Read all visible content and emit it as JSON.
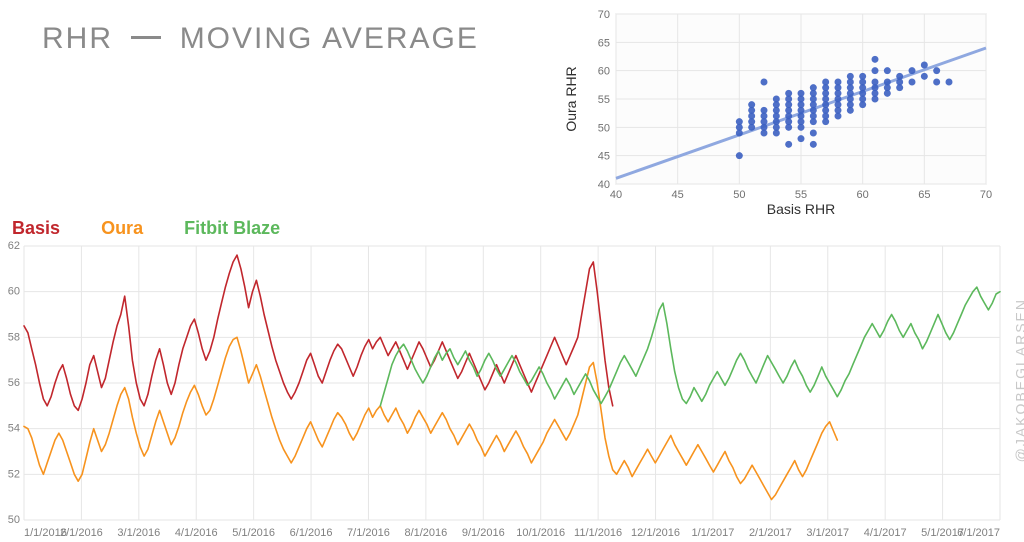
{
  "title_part1": "RHR",
  "title_part2": "MOVING AVERAGE",
  "watermark": "@JAKOBEGLARSEN",
  "legend": {
    "items": [
      {
        "label": "Basis",
        "color": "#c1272d"
      },
      {
        "label": "Oura",
        "color": "#f7931e"
      },
      {
        "label": "Fitbit Blaze",
        "color": "#5cb85c"
      }
    ]
  },
  "scatter": {
    "type": "scatter",
    "x_label": "Basis RHR",
    "y_label": "Oura RHR",
    "xlim": [
      40,
      70
    ],
    "ylim": [
      40,
      70
    ],
    "xtick_step": 5,
    "ytick_step": 5,
    "point_color": "#3b5fc1",
    "point_radius": 3.5,
    "fit_line_color": "#8fa8e0",
    "fit_line_width": 3,
    "fit_line": {
      "x1": 40,
      "y1": 41,
      "x2": 70,
      "y2": 64
    },
    "background_color": "#fcfcfc",
    "grid_color": "#e6e6e6",
    "points": [
      [
        50,
        45
      ],
      [
        50,
        49
      ],
      [
        50,
        50
      ],
      [
        50,
        51
      ],
      [
        51,
        50
      ],
      [
        51,
        51
      ],
      [
        51,
        52
      ],
      [
        51,
        53
      ],
      [
        51,
        54
      ],
      [
        52,
        49
      ],
      [
        52,
        50
      ],
      [
        52,
        51
      ],
      [
        52,
        52
      ],
      [
        52,
        53
      ],
      [
        52,
        58
      ],
      [
        53,
        49
      ],
      [
        53,
        50
      ],
      [
        53,
        51
      ],
      [
        53,
        52
      ],
      [
        53,
        53
      ],
      [
        53,
        54
      ],
      [
        53,
        55
      ],
      [
        54,
        50
      ],
      [
        54,
        51
      ],
      [
        54,
        52
      ],
      [
        54,
        53
      ],
      [
        54,
        54
      ],
      [
        54,
        55
      ],
      [
        54,
        56
      ],
      [
        54,
        47
      ],
      [
        55,
        50
      ],
      [
        55,
        51
      ],
      [
        55,
        52
      ],
      [
        55,
        53
      ],
      [
        55,
        54
      ],
      [
        55,
        55
      ],
      [
        55,
        56
      ],
      [
        55,
        48
      ],
      [
        56,
        51
      ],
      [
        56,
        52
      ],
      [
        56,
        53
      ],
      [
        56,
        54
      ],
      [
        56,
        55
      ],
      [
        56,
        56
      ],
      [
        56,
        57
      ],
      [
        56,
        49
      ],
      [
        56,
        47
      ],
      [
        57,
        51
      ],
      [
        57,
        52
      ],
      [
        57,
        53
      ],
      [
        57,
        54
      ],
      [
        57,
        55
      ],
      [
        57,
        56
      ],
      [
        57,
        57
      ],
      [
        57,
        58
      ],
      [
        58,
        52
      ],
      [
        58,
        53
      ],
      [
        58,
        54
      ],
      [
        58,
        55
      ],
      [
        58,
        56
      ],
      [
        58,
        57
      ],
      [
        58,
        58
      ],
      [
        59,
        53
      ],
      [
        59,
        54
      ],
      [
        59,
        55
      ],
      [
        59,
        56
      ],
      [
        59,
        57
      ],
      [
        59,
        58
      ],
      [
        59,
        59
      ],
      [
        60,
        54
      ],
      [
        60,
        55
      ],
      [
        60,
        56
      ],
      [
        60,
        57
      ],
      [
        60,
        58
      ],
      [
        60,
        59
      ],
      [
        61,
        55
      ],
      [
        61,
        56
      ],
      [
        61,
        57
      ],
      [
        61,
        58
      ],
      [
        61,
        60
      ],
      [
        61,
        62
      ],
      [
        62,
        56
      ],
      [
        62,
        57
      ],
      [
        62,
        58
      ],
      [
        62,
        60
      ],
      [
        63,
        57
      ],
      [
        63,
        58
      ],
      [
        63,
        59
      ],
      [
        64,
        58
      ],
      [
        64,
        60
      ],
      [
        65,
        59
      ],
      [
        65,
        61
      ],
      [
        66,
        58
      ],
      [
        66,
        60
      ],
      [
        67,
        58
      ]
    ]
  },
  "main_chart": {
    "type": "line",
    "ylim": [
      50,
      62
    ],
    "ytick_step": 2,
    "x_labels": [
      "1/1/2016",
      "2/1/2016",
      "3/1/2016",
      "4/1/2016",
      "5/1/2016",
      "6/1/2016",
      "7/1/2016",
      "8/1/2016",
      "9/1/2016",
      "10/1/2016",
      "11/1/2016",
      "12/1/2016",
      "1/1/2017",
      "2/1/2017",
      "3/1/2017",
      "4/1/2017",
      "5/1/2017",
      "6/1/2017"
    ],
    "grid_color": "#e6e6e6",
    "line_width": 1.6,
    "series": {
      "basis": {
        "color": "#c1272d",
        "start": 0,
        "data": [
          58.5,
          58.2,
          57.5,
          56.8,
          56.0,
          55.3,
          55.0,
          55.4,
          56.0,
          56.5,
          56.8,
          56.2,
          55.5,
          55.0,
          54.8,
          55.3,
          56.0,
          56.8,
          57.2,
          56.5,
          55.8,
          56.2,
          57.0,
          57.8,
          58.5,
          59.0,
          59.8,
          58.5,
          57.0,
          56.0,
          55.3,
          55.0,
          55.5,
          56.3,
          57.0,
          57.5,
          56.8,
          56.0,
          55.5,
          56.0,
          56.8,
          57.5,
          58.0,
          58.5,
          58.8,
          58.2,
          57.5,
          57.0,
          57.4,
          58.0,
          58.8,
          59.5,
          60.2,
          60.8,
          61.3,
          61.6,
          61.0,
          60.2,
          59.3,
          60.0,
          60.5,
          59.8,
          59.0,
          58.3,
          57.6,
          57.0,
          56.5,
          56.0,
          55.6,
          55.3,
          55.6,
          56.0,
          56.5,
          57.0,
          57.3,
          56.8,
          56.3,
          56.0,
          56.5,
          57.0,
          57.4,
          57.7,
          57.5,
          57.1,
          56.7,
          56.3,
          56.7,
          57.2,
          57.6,
          57.9,
          57.5,
          57.8,
          58.0,
          57.6,
          57.2,
          57.5,
          57.8,
          57.4,
          57.0,
          56.6,
          57.0,
          57.4,
          57.8,
          57.5,
          57.1,
          56.7,
          57.0,
          57.4,
          57.8,
          57.4,
          57.0,
          56.6,
          56.2,
          56.5,
          56.9,
          57.3,
          56.9,
          56.5,
          56.1,
          55.7,
          56.0,
          56.4,
          56.8,
          56.4,
          56.0,
          56.4,
          56.8,
          57.2,
          56.8,
          56.4,
          56.0,
          55.6,
          56.0,
          56.4,
          56.8,
          57.2,
          57.6,
          58.0,
          57.6,
          57.2,
          56.8,
          57.2,
          57.6,
          58.0,
          59.0,
          60.0,
          61.0,
          61.3,
          60.0,
          58.5,
          57.0,
          55.8,
          55.0
        ]
      },
      "oura": {
        "color": "#f7931e",
        "start": 0,
        "data": [
          54.1,
          54.0,
          53.6,
          53.0,
          52.4,
          52.0,
          52.5,
          53.0,
          53.5,
          53.8,
          53.5,
          53.0,
          52.5,
          52.0,
          51.7,
          52.0,
          52.7,
          53.4,
          54.0,
          53.5,
          53.0,
          53.3,
          53.8,
          54.4,
          55.0,
          55.5,
          55.8,
          55.3,
          54.5,
          53.8,
          53.2,
          52.8,
          53.1,
          53.7,
          54.3,
          54.8,
          54.3,
          53.8,
          53.3,
          53.6,
          54.1,
          54.7,
          55.2,
          55.6,
          55.9,
          55.5,
          55.0,
          54.6,
          54.8,
          55.3,
          55.9,
          56.5,
          57.1,
          57.6,
          57.9,
          58.0,
          57.4,
          56.7,
          56.0,
          56.4,
          56.8,
          56.3,
          55.7,
          55.1,
          54.5,
          54.0,
          53.5,
          53.1,
          52.8,
          52.5,
          52.8,
          53.2,
          53.6,
          54.0,
          54.3,
          53.9,
          53.5,
          53.2,
          53.6,
          54.0,
          54.4,
          54.7,
          54.5,
          54.2,
          53.8,
          53.5,
          53.8,
          54.2,
          54.6,
          54.9,
          54.5,
          54.8,
          55.0,
          54.6,
          54.3,
          54.6,
          54.9,
          54.5,
          54.2,
          53.8,
          54.1,
          54.5,
          54.8,
          54.5,
          54.2,
          53.8,
          54.1,
          54.4,
          54.7,
          54.4,
          54.0,
          53.7,
          53.3,
          53.6,
          53.9,
          54.2,
          53.9,
          53.5,
          53.2,
          52.8,
          53.1,
          53.4,
          53.7,
          53.4,
          53.0,
          53.3,
          53.6,
          53.9,
          53.6,
          53.2,
          52.9,
          52.5,
          52.8,
          53.1,
          53.4,
          53.8,
          54.1,
          54.4,
          54.1,
          53.8,
          53.5,
          53.8,
          54.2,
          54.6,
          55.3,
          56.0,
          56.7,
          56.9,
          56.0,
          54.8,
          53.6,
          52.8,
          52.2,
          52.0,
          52.3,
          52.6,
          52.3,
          51.9,
          52.2,
          52.5,
          52.8,
          53.1,
          52.8,
          52.5,
          52.8,
          53.1,
          53.4,
          53.7,
          53.3,
          53.0,
          52.7,
          52.4,
          52.7,
          53.0,
          53.3,
          53.0,
          52.7,
          52.4,
          52.1,
          52.4,
          52.7,
          53.0,
          52.6,
          52.3,
          51.9,
          51.6,
          51.8,
          52.1,
          52.4,
          52.1,
          51.8,
          51.5,
          51.2,
          50.9,
          51.1,
          51.4,
          51.7,
          52.0,
          52.3,
          52.6,
          52.2,
          51.9,
          52.2,
          52.6,
          53.0,
          53.4,
          53.8,
          54.1,
          54.3,
          53.9,
          53.5
        ]
      },
      "fitbit": {
        "color": "#5cb85c",
        "start": 92,
        "data": [
          55.0,
          55.6,
          56.2,
          56.8,
          57.2,
          57.5,
          57.7,
          57.4,
          57.0,
          56.6,
          56.3,
          56.0,
          56.3,
          56.7,
          57.1,
          57.4,
          57.0,
          57.3,
          57.5,
          57.1,
          56.8,
          57.1,
          57.4,
          57.0,
          56.7,
          56.3,
          56.6,
          57.0,
          57.3,
          57.0,
          56.6,
          56.3,
          56.6,
          56.9,
          57.2,
          56.9,
          56.5,
          56.2,
          55.9,
          56.1,
          56.4,
          56.7,
          56.4,
          56.0,
          55.7,
          55.3,
          55.6,
          55.9,
          56.2,
          55.9,
          55.5,
          55.8,
          56.1,
          56.4,
          56.1,
          55.7,
          55.4,
          55.1,
          55.4,
          55.7,
          56.1,
          56.5,
          56.9,
          57.2,
          56.9,
          56.6,
          56.3,
          56.7,
          57.1,
          57.5,
          58.0,
          58.6,
          59.2,
          59.5,
          58.6,
          57.5,
          56.5,
          55.8,
          55.3,
          55.1,
          55.4,
          55.8,
          55.5,
          55.2,
          55.5,
          55.9,
          56.2,
          56.5,
          56.2,
          55.9,
          56.2,
          56.6,
          57.0,
          57.3,
          57.0,
          56.6,
          56.3,
          56.0,
          56.4,
          56.8,
          57.2,
          56.9,
          56.6,
          56.3,
          56.0,
          56.3,
          56.7,
          57.0,
          56.6,
          56.3,
          55.9,
          55.6,
          55.9,
          56.3,
          56.7,
          56.3,
          56.0,
          55.7,
          55.4,
          55.7,
          56.1,
          56.4,
          56.8,
          57.2,
          57.6,
          58.0,
          58.3,
          58.6,
          58.3,
          58.0,
          58.3,
          58.7,
          59.0,
          58.7,
          58.3,
          58.0,
          58.3,
          58.6,
          58.2,
          57.9,
          57.5,
          57.8,
          58.2,
          58.6,
          59.0,
          58.6,
          58.2,
          57.9,
          58.2,
          58.6,
          59.0,
          59.4,
          59.7,
          60.0,
          60.2,
          59.8,
          59.5,
          59.2,
          59.5,
          59.9,
          60.0
        ]
      }
    }
  }
}
